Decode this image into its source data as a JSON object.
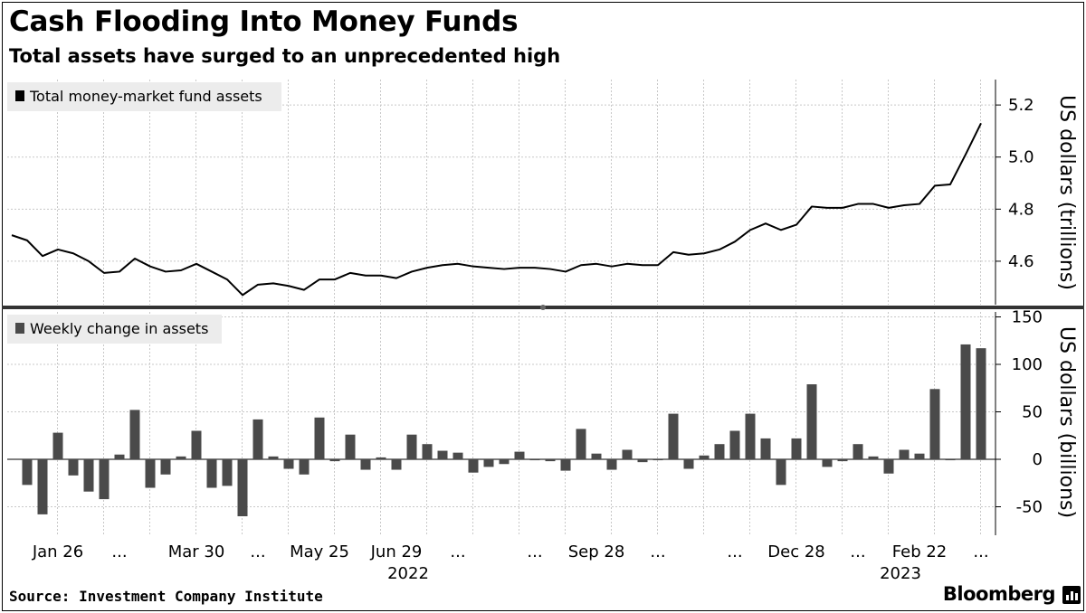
{
  "header": {
    "title": "Cash Flooding Into Money Funds",
    "subtitle": "Total assets have surged to an unprecedented high"
  },
  "footer": {
    "source": "Source: Investment Company Institute",
    "brand": "Bloomberg"
  },
  "colors": {
    "line": "#000000",
    "bar": "#4a4a4a",
    "grid": "#c8c8c8",
    "legend_bg": "#ececec",
    "divider": "#333333"
  },
  "chart_data": [
    {
      "type": "line",
      "legend": "Total money-market fund assets",
      "ylabel": "US dollars (trillions)",
      "yticks": [
        "4.6",
        "4.8",
        "5.0",
        "5.2"
      ],
      "ylim": [
        4.44,
        5.27
      ],
      "grid": true,
      "legend_position": "top-left",
      "values": [
        4.7,
        4.68,
        4.62,
        4.645,
        4.63,
        4.6,
        4.555,
        4.56,
        4.61,
        4.58,
        4.56,
        4.565,
        4.59,
        4.56,
        4.53,
        4.47,
        4.51,
        4.515,
        4.505,
        4.49,
        4.53,
        4.53,
        4.555,
        4.545,
        4.545,
        4.535,
        4.56,
        4.575,
        4.585,
        4.59,
        4.58,
        4.575,
        4.57,
        4.575,
        4.575,
        4.57,
        4.56,
        4.585,
        4.59,
        4.58,
        4.59,
        4.585,
        4.585,
        4.635,
        4.625,
        4.63,
        4.645,
        4.675,
        4.72,
        4.745,
        4.72,
        4.74,
        4.81,
        4.805,
        4.805,
        4.82,
        4.82,
        4.805,
        4.815,
        4.82,
        4.89,
        4.895,
        5.01,
        5.13
      ]
    },
    {
      "type": "bar",
      "legend": "Weekly change in assets",
      "ylabel": "US dollars (billions)",
      "yticks": [
        "-50",
        "0",
        "50",
        "100",
        "150"
      ],
      "ylim": [
        -75,
        160
      ],
      "grid": true,
      "legend_position": "top-left",
      "values": [
        -27,
        -58,
        28,
        -17,
        -34,
        -42,
        5,
        52,
        -30,
        -16,
        3,
        30,
        -30,
        -28,
        -60,
        42,
        3,
        -10,
        -16,
        44,
        -2,
        26,
        -11,
        2,
        -11,
        26,
        16,
        9,
        7,
        -14,
        -8,
        -5,
        8,
        -1,
        -2,
        -12,
        32,
        6,
        -11,
        10,
        -3,
        -1,
        48,
        -10,
        4,
        16,
        30,
        48,
        22,
        -27,
        22,
        79,
        -8,
        -2,
        16,
        3,
        -15,
        10,
        6,
        74,
        -1,
        121,
        117
      ]
    }
  ],
  "x_axis": {
    "labels": [
      {
        "text": "Jan 26",
        "index": 3
      },
      {
        "text": "...",
        "index": 7
      },
      {
        "text": "Mar 30",
        "index": 12
      },
      {
        "text": "...",
        "index": 16
      },
      {
        "text": "May 25",
        "index": 20
      },
      {
        "text": "Jun 29",
        "index": 25
      },
      {
        "text": "...",
        "index": 29
      },
      {
        "text": "...",
        "index": 34
      },
      {
        "text": "Sep 28",
        "index": 38
      },
      {
        "text": "...",
        "index": 42
      },
      {
        "text": "...",
        "index": 47
      },
      {
        "text": "Dec 28",
        "index": 51
      },
      {
        "text": "...",
        "index": 55
      },
      {
        "text": "Feb 22",
        "index": 59
      },
      {
        "text": "...",
        "index": 63
      }
    ],
    "years": [
      {
        "text": "2022",
        "index": 25
      },
      {
        "text": "2023",
        "index": 57
      }
    ]
  }
}
